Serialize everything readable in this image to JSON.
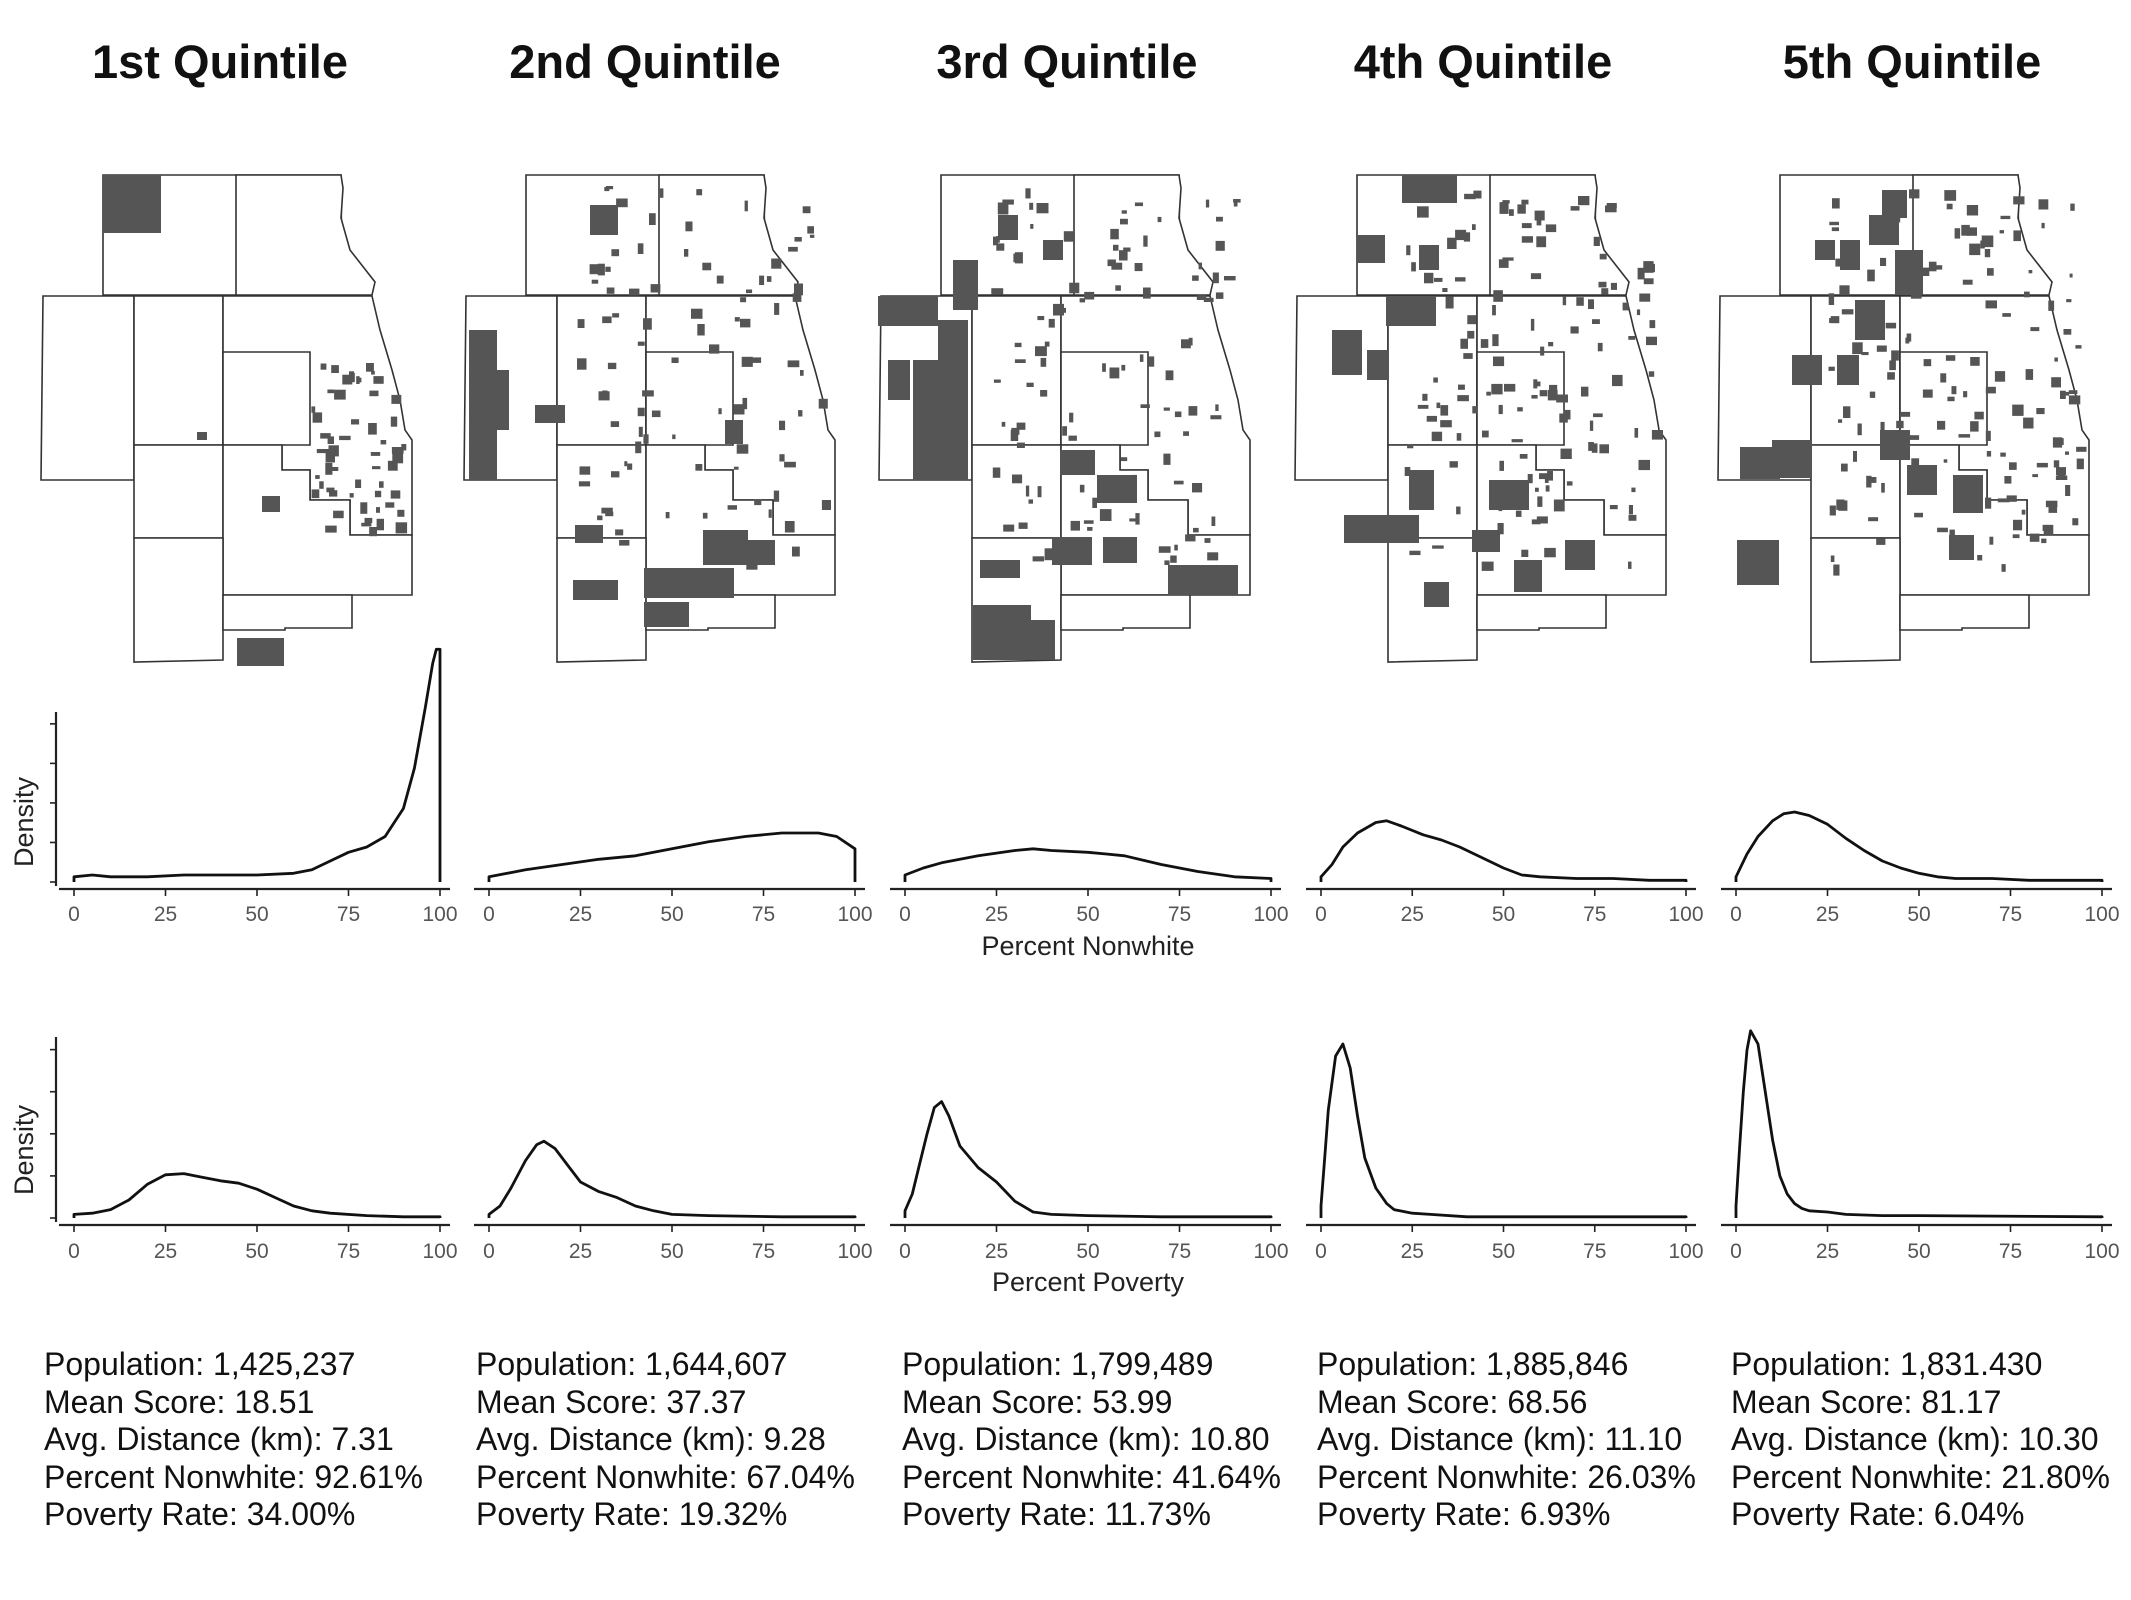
{
  "chart_data": [
    {
      "type": "map",
      "titles": [
        "1st Quintile",
        "2nd Quintile",
        "3rd Quintile",
        "4th Quintile",
        "5th Quintile"
      ]
    },
    {
      "type": "line",
      "subtype": "density",
      "xlabel": "Percent Nonwhite",
      "ylabel": "Density",
      "xlim": [
        0,
        100
      ],
      "xticks": [
        "0",
        "25",
        "50",
        "75",
        "100"
      ],
      "y_axis_scale": "relative density (unlabeled ticks)",
      "series": [
        {
          "x": [
            0,
            5,
            10,
            20,
            30,
            40,
            50,
            60,
            65,
            70,
            75,
            80,
            85,
            90,
            93,
            96,
            98,
            99,
            100
          ],
          "y": [
            0.03,
            0.04,
            0.03,
            0.03,
            0.04,
            0.04,
            0.04,
            0.05,
            0.07,
            0.12,
            0.17,
            0.2,
            0.26,
            0.42,
            0.65,
            1.0,
            1.25,
            1.33,
            1.33
          ]
        },
        {
          "x": [
            0,
            10,
            20,
            30,
            40,
            50,
            60,
            70,
            80,
            90,
            95,
            100
          ],
          "y": [
            0.03,
            0.07,
            0.1,
            0.13,
            0.15,
            0.19,
            0.23,
            0.26,
            0.28,
            0.28,
            0.26,
            0.19
          ]
        },
        {
          "x": [
            0,
            5,
            10,
            20,
            30,
            35,
            40,
            50,
            55,
            60,
            70,
            80,
            90,
            100
          ],
          "y": [
            0.04,
            0.08,
            0.11,
            0.15,
            0.18,
            0.19,
            0.18,
            0.17,
            0.16,
            0.15,
            0.1,
            0.06,
            0.03,
            0.02
          ]
        },
        {
          "x": [
            0,
            3,
            6,
            10,
            15,
            18,
            22,
            28,
            33,
            38,
            45,
            50,
            55,
            60,
            70,
            80,
            90,
            100
          ],
          "y": [
            0.03,
            0.1,
            0.2,
            0.28,
            0.34,
            0.35,
            0.32,
            0.27,
            0.24,
            0.2,
            0.13,
            0.08,
            0.04,
            0.03,
            0.02,
            0.02,
            0.01,
            0.01
          ]
        },
        {
          "x": [
            0,
            3,
            6,
            10,
            13,
            16,
            20,
            25,
            30,
            35,
            40,
            45,
            50,
            55,
            60,
            70,
            80,
            90,
            100
          ],
          "y": [
            0.03,
            0.16,
            0.26,
            0.35,
            0.39,
            0.4,
            0.38,
            0.33,
            0.25,
            0.18,
            0.12,
            0.08,
            0.05,
            0.03,
            0.02,
            0.02,
            0.01,
            0.01,
            0.01
          ]
        }
      ]
    },
    {
      "type": "line",
      "subtype": "density",
      "xlabel": "Percent Poverty",
      "ylabel": "Density",
      "xlim": [
        0,
        100
      ],
      "xticks": [
        "0",
        "25",
        "50",
        "75",
        "100"
      ],
      "y_axis_scale": "relative density (unlabeled ticks)",
      "series": [
        {
          "x": [
            0,
            5,
            10,
            15,
            20,
            25,
            30,
            35,
            40,
            45,
            50,
            55,
            60,
            65,
            70,
            80,
            90,
            100
          ],
          "y": [
            0.03,
            0.04,
            0.07,
            0.15,
            0.28,
            0.36,
            0.37,
            0.34,
            0.31,
            0.29,
            0.24,
            0.17,
            0.1,
            0.06,
            0.04,
            0.02,
            0.01,
            0.01
          ]
        },
        {
          "x": [
            0,
            3,
            6,
            10,
            13,
            15,
            18,
            22,
            25,
            30,
            35,
            40,
            45,
            50,
            60,
            80,
            100
          ],
          "y": [
            0.03,
            0.1,
            0.25,
            0.48,
            0.61,
            0.64,
            0.58,
            0.42,
            0.3,
            0.22,
            0.17,
            0.1,
            0.06,
            0.03,
            0.02,
            0.01,
            0.01
          ]
        },
        {
          "x": [
            0,
            2,
            4,
            6,
            8,
            10,
            12,
            15,
            20,
            25,
            30,
            35,
            40,
            50,
            70,
            100
          ],
          "y": [
            0.06,
            0.2,
            0.45,
            0.7,
            0.92,
            0.97,
            0.85,
            0.6,
            0.42,
            0.3,
            0.14,
            0.05,
            0.03,
            0.02,
            0.01,
            0.01
          ]
        },
        {
          "x": [
            0,
            1,
            2,
            4,
            6,
            8,
            10,
            12,
            15,
            18,
            20,
            25,
            30,
            40,
            60,
            100
          ],
          "y": [
            0.1,
            0.5,
            0.9,
            1.35,
            1.45,
            1.25,
            0.85,
            0.5,
            0.25,
            0.12,
            0.07,
            0.04,
            0.03,
            0.01,
            0.01,
            0.01
          ]
        },
        {
          "x": [
            0,
            1,
            2,
            3,
            4,
            6,
            8,
            10,
            12,
            14,
            16,
            18,
            20,
            25,
            30,
            40,
            50,
            100
          ],
          "y": [
            0.1,
            0.6,
            1.05,
            1.4,
            1.56,
            1.45,
            1.05,
            0.65,
            0.35,
            0.2,
            0.12,
            0.08,
            0.06,
            0.05,
            0.03,
            0.02,
            0.02,
            0.01
          ]
        }
      ]
    }
  ],
  "stats": [
    {
      "population": "Population: 1,425,237",
      "mean_score": "Mean Score: 18.51",
      "avg_distance": "Avg. Distance (km): 7.31",
      "percent_nonwhite": "Percent Nonwhite: 92.61%",
      "poverty_rate": "Poverty Rate: 34.00%"
    },
    {
      "population": "Population: 1,644,607",
      "mean_score": "Mean Score: 37.37",
      "avg_distance": "Avg. Distance (km): 9.28",
      "percent_nonwhite": "Percent Nonwhite: 67.04%",
      "poverty_rate": "Poverty Rate: 19.32%"
    },
    {
      "population": "Population: 1,799,489",
      "mean_score": "Mean Score: 53.99",
      "avg_distance": "Avg. Distance (km): 10.80",
      "percent_nonwhite": "Percent Nonwhite: 41.64%",
      "poverty_rate": "Poverty Rate: 11.73%"
    },
    {
      "population": "Population: 1,885,846",
      "mean_score": "Mean Score: 68.56",
      "avg_distance": "Avg. Distance (km): 11.10",
      "percent_nonwhite": "Percent Nonwhite: 26.03%",
      "poverty_rate": "Poverty Rate: 6.93%"
    },
    {
      "population": "Population: 1,831.430",
      "mean_score": "Mean Score: 81.17",
      "avg_distance": "Avg. Distance (km): 10.30",
      "percent_nonwhite": "Percent Nonwhite: 21.80%",
      "poverty_rate": "Poverty Rate: 6.04%"
    }
  ]
}
